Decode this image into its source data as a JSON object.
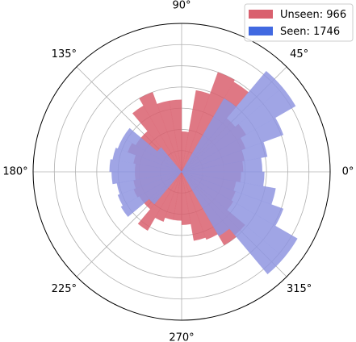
{
  "chart_data": {
    "type": "polar-histogram",
    "title": "",
    "grid": true,
    "legend_position": "top-right",
    "angle_ticks": [
      {
        "deg": 0,
        "label": "0°"
      },
      {
        "deg": 45,
        "label": "45°"
      },
      {
        "deg": 90,
        "label": "90°"
      },
      {
        "deg": 135,
        "label": "135°"
      },
      {
        "deg": 180,
        "label": "180°"
      },
      {
        "deg": 225,
        "label": "225°"
      },
      {
        "deg": 270,
        "label": "270°"
      },
      {
        "deg": 315,
        "label": "315°"
      }
    ],
    "radial_grid": [
      1,
      2,
      3,
      4,
      5,
      6,
      7
    ],
    "radial_max": 7,
    "bin_width_deg": 10,
    "series": [
      {
        "name": "Unseen: 966",
        "color": "#d9606e",
        "opacity": 0.85,
        "bins": [
          {
            "start": 0,
            "r": 2.9
          },
          {
            "start": 10,
            "r": 3.0
          },
          {
            "start": 20,
            "r": 3.2
          },
          {
            "start": 30,
            "r": 3.5
          },
          {
            "start": 40,
            "r": 3.3
          },
          {
            "start": 50,
            "r": 4.9
          },
          {
            "start": 60,
            "r": 5.0
          },
          {
            "start": 70,
            "r": 3.9
          },
          {
            "start": 80,
            "r": 1.9
          },
          {
            "start": 90,
            "r": 3.4
          },
          {
            "start": 100,
            "r": 3.4
          },
          {
            "start": 110,
            "r": 4.0
          },
          {
            "start": 120,
            "r": 3.6
          },
          {
            "start": 130,
            "r": 2.5
          },
          {
            "start": 140,
            "r": 2.5
          },
          {
            "start": 150,
            "r": 2.7
          },
          {
            "start": 160,
            "r": 2.3
          },
          {
            "start": 170,
            "r": 2.2
          },
          {
            "start": 180,
            "r": 2.2
          },
          {
            "start": 190,
            "r": 2.3
          },
          {
            "start": 200,
            "r": 2.4
          },
          {
            "start": 210,
            "r": 2.3
          },
          {
            "start": 220,
            "r": 2.3
          },
          {
            "start": 230,
            "r": 3.2
          },
          {
            "start": 240,
            "r": 2.5
          },
          {
            "start": 250,
            "r": 2.3
          },
          {
            "start": 260,
            "r": 2.3
          },
          {
            "start": 270,
            "r": 2.5
          },
          {
            "start": 280,
            "r": 3.3
          },
          {
            "start": 290,
            "r": 3.4
          },
          {
            "start": 300,
            "r": 4.0
          },
          {
            "start": 310,
            "r": 3.9
          },
          {
            "start": 320,
            "r": 2.8
          },
          {
            "start": 330,
            "r": 2.7
          },
          {
            "start": 340,
            "r": 2.6
          },
          {
            "start": 350,
            "r": 2.8
          }
        ]
      },
      {
        "name": "Seen: 1746",
        "color": "#8f95e0",
        "opacity": 0.85,
        "bins": [
          {
            "start": 0,
            "r": 3.8
          },
          {
            "start": 10,
            "r": 4.1
          },
          {
            "start": 20,
            "r": 5.1
          },
          {
            "start": 30,
            "r": 6.2
          },
          {
            "start": 40,
            "r": 6.2
          },
          {
            "start": 50,
            "r": 4.0
          },
          {
            "start": 60,
            "r": 0
          },
          {
            "start": 70,
            "r": 0
          },
          {
            "start": 80,
            "r": 0
          },
          {
            "start": 90,
            "r": 0
          },
          {
            "start": 100,
            "r": 0
          },
          {
            "start": 110,
            "r": 0
          },
          {
            "start": 120,
            "r": 0
          },
          {
            "start": 130,
            "r": 1.5
          },
          {
            "start": 140,
            "r": 3.2
          },
          {
            "start": 150,
            "r": 3.2
          },
          {
            "start": 160,
            "r": 3.3
          },
          {
            "start": 170,
            "r": 3.4
          },
          {
            "start": 180,
            "r": 3.3
          },
          {
            "start": 190,
            "r": 3.1
          },
          {
            "start": 200,
            "r": 3.2
          },
          {
            "start": 210,
            "r": 3.3
          },
          {
            "start": 220,
            "r": 2.0
          },
          {
            "start": 230,
            "r": 0
          },
          {
            "start": 240,
            "r": 0
          },
          {
            "start": 250,
            "r": 0
          },
          {
            "start": 260,
            "r": 0
          },
          {
            "start": 270,
            "r": 0
          },
          {
            "start": 280,
            "r": 0
          },
          {
            "start": 290,
            "r": 0
          },
          {
            "start": 300,
            "r": 3.5
          },
          {
            "start": 310,
            "r": 6.3
          },
          {
            "start": 320,
            "r": 6.3
          },
          {
            "start": 330,
            "r": 5.1
          },
          {
            "start": 340,
            "r": 4.5
          },
          {
            "start": 350,
            "r": 3.9
          }
        ]
      }
    ]
  }
}
